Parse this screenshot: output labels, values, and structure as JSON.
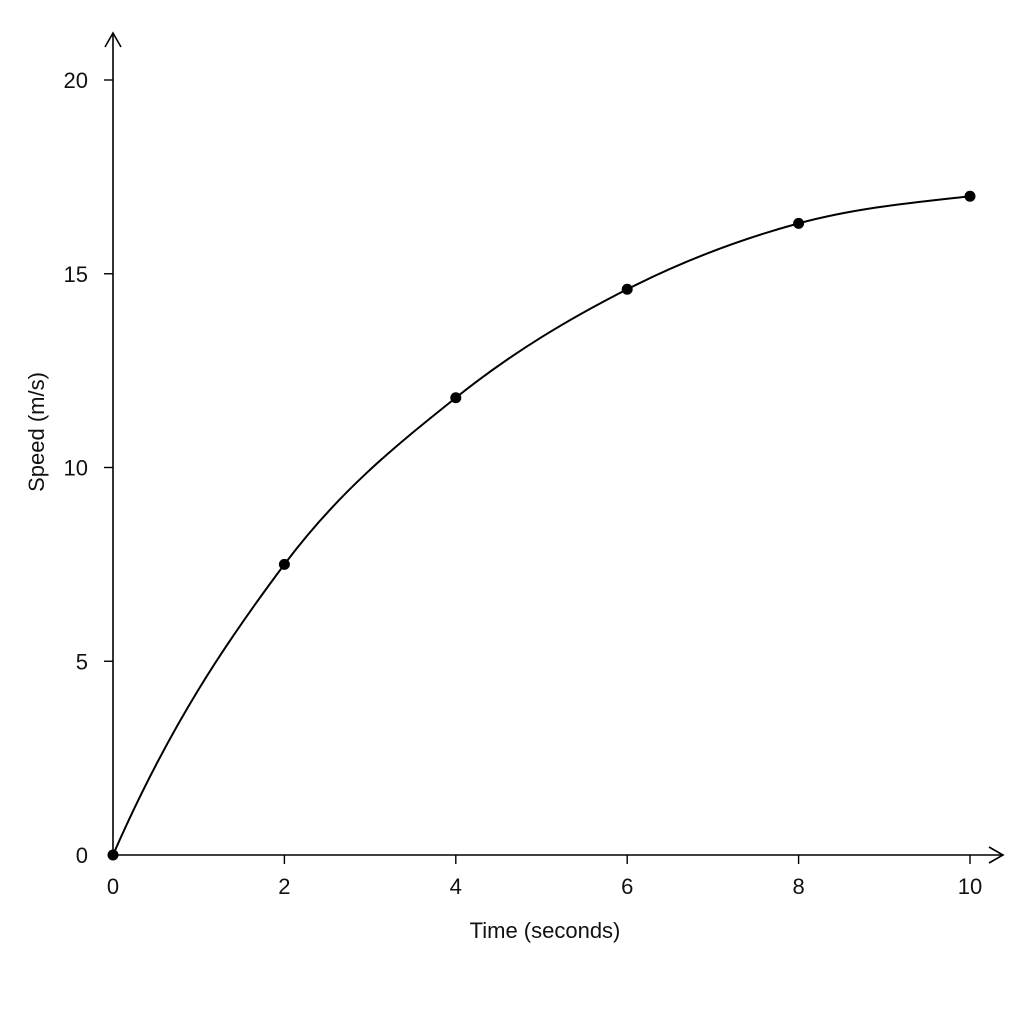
{
  "chart_data": {
    "type": "line",
    "title": "",
    "xlabel": "Time (seconds)",
    "ylabel": "Speed (m/s)",
    "xlim": [
      0,
      10
    ],
    "ylim": [
      0,
      20
    ],
    "x_ticks": [
      0,
      2,
      4,
      6,
      8,
      10
    ],
    "y_ticks": [
      0,
      5,
      10,
      15,
      20
    ],
    "x_tick_labels": [
      "0",
      "2",
      "4",
      "6",
      "8",
      "10"
    ],
    "y_tick_labels": [
      "0",
      "5",
      "10",
      "15",
      "20"
    ],
    "grid": false,
    "legend": "none",
    "smooth_curve": true,
    "axis_arrows": true,
    "colors": {
      "line": "#000000",
      "marker": "#000000",
      "axis": "#000000"
    },
    "series": [
      {
        "x": [
          0,
          2,
          4,
          6,
          8,
          10
        ],
        "y": [
          0,
          7.5,
          11.8,
          14.6,
          16.3,
          17.0
        ]
      }
    ]
  }
}
